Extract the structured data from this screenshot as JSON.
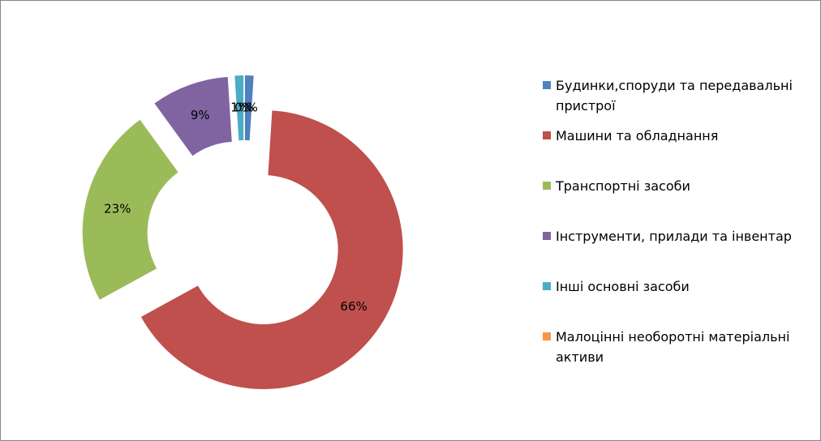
{
  "chart_data": {
    "type": "donut",
    "categories": [
      "Будинки,споруди та передавальні пристрої",
      "Машини та обладнання",
      "Транспортні засоби",
      "Інструменти, прилади та інвентар",
      "Інші основні засоби",
      "Малоцінні необоротні матеріальні активи"
    ],
    "values": [
      1,
      66,
      23,
      9,
      1,
      0
    ],
    "value_labels": [
      "1%",
      "66%",
      "23%",
      "9%",
      "1%",
      "0%"
    ],
    "colors": [
      "#4f81bd",
      "#c0504d",
      "#9bbb59",
      "#8064a2",
      "#4bacc6",
      "#f79646"
    ],
    "legend": "right"
  }
}
